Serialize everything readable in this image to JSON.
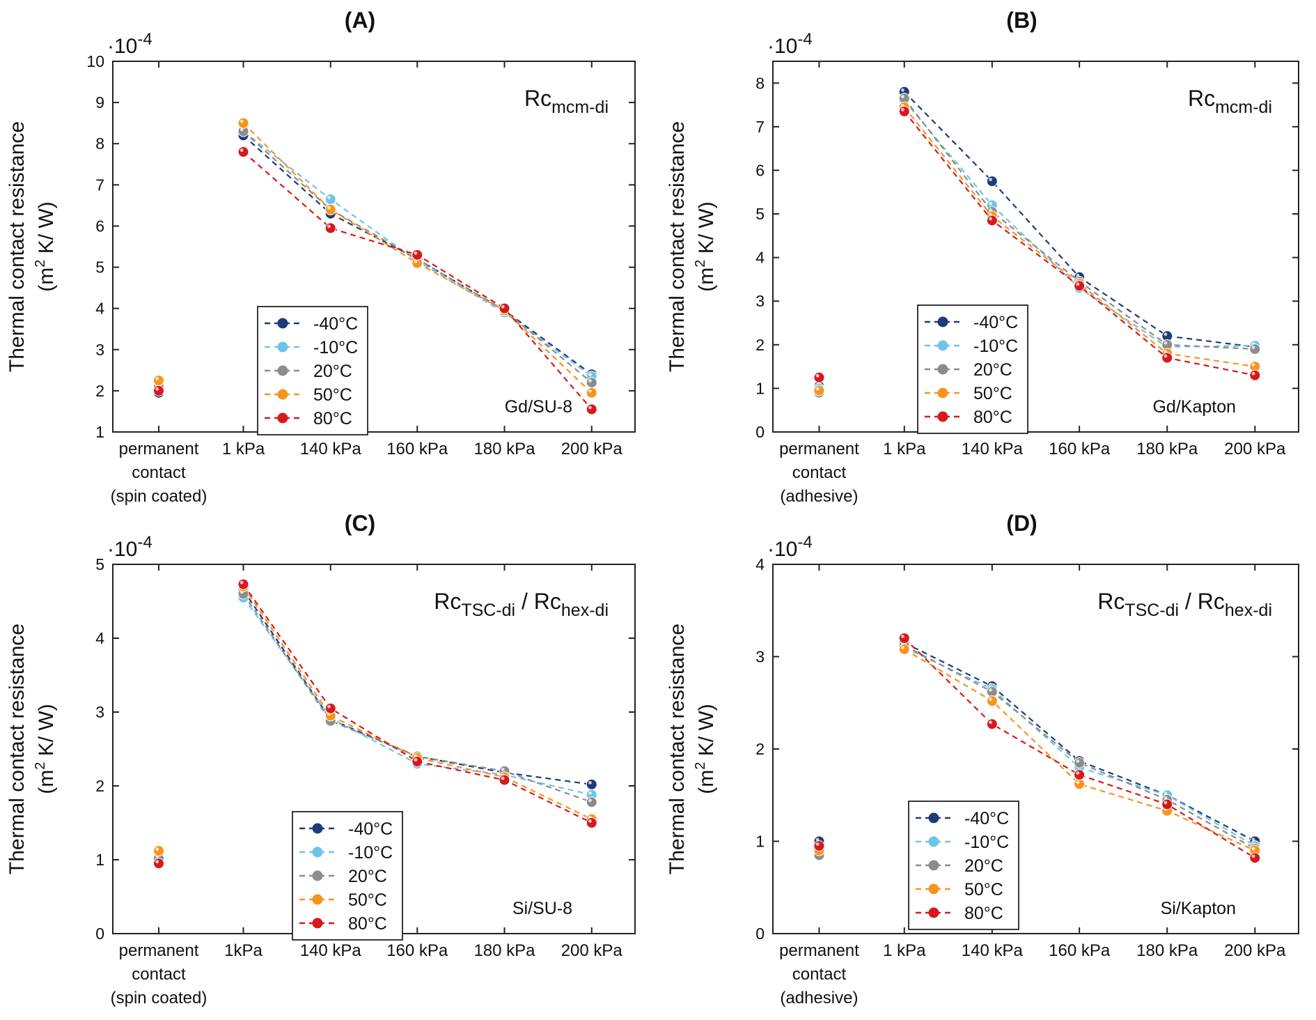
{
  "styles": {
    "series_colors": {
      "-40°C": "#1f3a78",
      "-10°C": "#6ec3e8",
      "20°C": "#8c8c8c",
      "50°C": "#f7941d",
      "80°C": "#d7191c"
    }
  },
  "chart_data": [
    {
      "panel": "(A)",
      "type": "line",
      "title": "(A)",
      "exponent_label": "·10",
      "exponent_power": "-4",
      "ylabel_line1": "Thermal contact resistance",
      "ylabel_line2_pre": "(m",
      "ylabel_line2_sup": "2",
      "ylabel_line2_post": " K/ W)",
      "ylim": [
        1,
        10
      ],
      "yticks": [
        "1",
        "2",
        "3",
        "4",
        "5",
        "6",
        "7",
        "8",
        "9",
        "10"
      ],
      "categories": [
        [
          "permanent",
          "contact",
          "(spin coated)"
        ],
        [
          "1 kPa"
        ],
        [
          "140 kPa"
        ],
        [
          "160 kPa"
        ],
        [
          "180 kPa"
        ],
        [
          "200 kPa"
        ]
      ],
      "annotation_main": "Rc",
      "annotation_main_sub": "mcm-di",
      "annotation_main_mid": "",
      "annotation_main2": "",
      "annotation_main2_sub": "",
      "annotation_sample": "Gd/SU-8",
      "legend_position": "lower-left",
      "series": [
        {
          "name": "-40°C",
          "values": [
            1.95,
            8.2,
            6.3,
            5.2,
            3.95,
            2.4
          ]
        },
        {
          "name": "-10°C",
          "values": [
            2.05,
            8.3,
            6.65,
            5.15,
            3.9,
            2.35
          ]
        },
        {
          "name": "20°C",
          "values": [
            2.1,
            8.3,
            6.4,
            5.2,
            3.95,
            2.2
          ]
        },
        {
          "name": "50°C",
          "values": [
            2.25,
            8.5,
            6.4,
            5.1,
            3.95,
            1.95
          ]
        },
        {
          "name": "80°C",
          "values": [
            2.0,
            7.8,
            5.95,
            5.3,
            4.0,
            1.55
          ]
        }
      ]
    },
    {
      "panel": "(B)",
      "type": "line",
      "title": "(B)",
      "exponent_label": "·10",
      "exponent_power": "-4",
      "ylabel_line1": "Thermal contact resistance",
      "ylabel_line2_pre": "(m",
      "ylabel_line2_sup": "2",
      "ylabel_line2_post": " K/ W)",
      "ylim": [
        0,
        8.5
      ],
      "yticks": [
        "0",
        "1",
        "2",
        "3",
        "4",
        "5",
        "6",
        "7",
        "8"
      ],
      "categories": [
        [
          "permanent",
          "contact",
          "(adhesive)"
        ],
        [
          "1 kPa"
        ],
        [
          "140 kPa"
        ],
        [
          "160 kPa"
        ],
        [
          "180 kPa"
        ],
        [
          "200 kPa"
        ]
      ],
      "annotation_main": "Rc",
      "annotation_main_sub": "mcm-di",
      "annotation_main_mid": "",
      "annotation_main2": "",
      "annotation_main2_sub": "",
      "annotation_sample": "Gd/Kapton",
      "legend_position": "lower-left",
      "series": [
        {
          "name": "-40°C",
          "values": [
            1.05,
            7.8,
            5.75,
            3.55,
            2.2,
            1.95
          ]
        },
        {
          "name": "-10°C",
          "values": [
            1.0,
            7.6,
            5.2,
            3.3,
            1.95,
            1.98
          ]
        },
        {
          "name": "20°C",
          "values": [
            0.9,
            7.65,
            5.05,
            3.45,
            2.0,
            1.9
          ]
        },
        {
          "name": "50°C",
          "values": [
            0.95,
            7.45,
            4.95,
            3.4,
            1.8,
            1.5
          ]
        },
        {
          "name": "80°C",
          "values": [
            1.25,
            7.35,
            4.85,
            3.35,
            1.7,
            1.3
          ]
        }
      ]
    },
    {
      "panel": "(C)",
      "type": "line",
      "title": "(C)",
      "exponent_label": "·10",
      "exponent_power": "-4",
      "ylabel_line1": "Thermal contact resistance",
      "ylabel_line2_pre": "(m",
      "ylabel_line2_sup": "2",
      "ylabel_line2_post": " K/ W)",
      "ylim": [
        0,
        5
      ],
      "yticks": [
        "0",
        "1",
        "2",
        "3",
        "4",
        "5"
      ],
      "categories": [
        [
          "permanent",
          "contact",
          "(spin coated)"
        ],
        [
          "1kPa"
        ],
        [
          "140 kPa"
        ],
        [
          "160 kPa"
        ],
        [
          "180 kPa"
        ],
        [
          "200 kPa"
        ]
      ],
      "annotation_main": "Rc",
      "annotation_main_sub": "TSC-di",
      "annotation_main_mid": " / ",
      "annotation_main2": "Rc",
      "annotation_main2_sub": "hex-di",
      "annotation_sample": "Si/SU-8",
      "legend_position": "lower-center",
      "series": [
        {
          "name": "-40°C",
          "values": [
            0.97,
            4.65,
            2.9,
            2.4,
            2.18,
            2.02
          ]
        },
        {
          "name": "-10°C",
          "values": [
            1.0,
            4.55,
            2.92,
            2.3,
            2.15,
            1.88
          ]
        },
        {
          "name": "20°C",
          "values": [
            1.02,
            4.6,
            2.88,
            2.4,
            2.2,
            1.78
          ]
        },
        {
          "name": "50°C",
          "values": [
            1.12,
            4.7,
            2.95,
            2.38,
            2.12,
            1.55
          ]
        },
        {
          "name": "80°C",
          "values": [
            0.95,
            4.73,
            3.05,
            2.33,
            2.08,
            1.5
          ]
        }
      ]
    },
    {
      "panel": "(D)",
      "type": "line",
      "title": "(D)",
      "exponent_label": "·10",
      "exponent_power": "-4",
      "ylabel_line1": "Thermal contact resistance",
      "ylabel_line2_pre": "(m",
      "ylabel_line2_sup": "2",
      "ylabel_line2_post": " K/ W)",
      "ylim": [
        0,
        4
      ],
      "yticks": [
        "0",
        "1",
        "2",
        "3",
        "4"
      ],
      "categories": [
        [
          "permanent",
          "contact",
          "(adhesive)"
        ],
        [
          "1 kPa"
        ],
        [
          "140 kPa"
        ],
        [
          "160 kPa"
        ],
        [
          "180 kPa"
        ],
        [
          "200 kPa"
        ]
      ],
      "annotation_main": "Rc",
      "annotation_main_sub": "TSC-di",
      "annotation_main_mid": " / ",
      "annotation_main2": "Rc",
      "annotation_main2_sub": "hex-di",
      "annotation_sample": "Si/Kapton",
      "legend_position": "lower-left",
      "series": [
        {
          "name": "-40°C",
          "values": [
            1.0,
            3.15,
            2.68,
            1.87,
            1.5,
            1.0
          ]
        },
        {
          "name": "-10°C",
          "values": [
            0.92,
            3.1,
            2.65,
            1.8,
            1.5,
            0.95
          ]
        },
        {
          "name": "20°C",
          "values": [
            0.85,
            3.12,
            2.62,
            1.85,
            1.45,
            0.92
          ]
        },
        {
          "name": "50°C",
          "values": [
            0.9,
            3.08,
            2.52,
            1.62,
            1.33,
            0.9
          ]
        },
        {
          "name": "80°C",
          "values": [
            0.95,
            3.2,
            2.27,
            1.72,
            1.4,
            0.82
          ]
        }
      ]
    }
  ]
}
